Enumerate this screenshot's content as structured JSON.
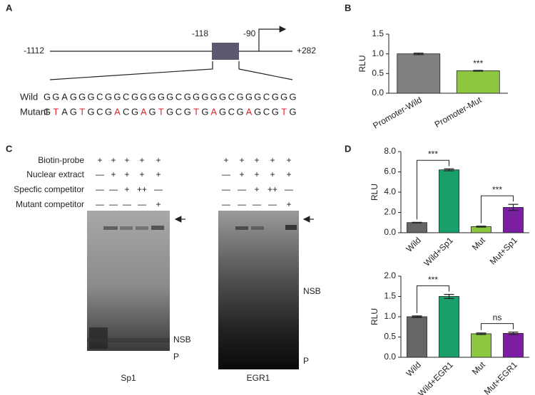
{
  "panel_labels": [
    "A",
    "B",
    "C",
    "D"
  ],
  "promoter_map": {
    "positions": [
      "-1112",
      "-118",
      "-90",
      "+282"
    ],
    "box_color": "#5c5870",
    "sequence_labels": [
      "Wild",
      "Mutant"
    ],
    "wild_sequence": [
      "G",
      "G",
      "A",
      "G",
      "G",
      "G",
      "C",
      "G",
      "G",
      "C",
      "G",
      "G",
      "G",
      "G",
      "G",
      "C",
      "G",
      "G",
      "G",
      "G",
      "G",
      "C",
      "G",
      "G",
      "G",
      "C",
      "G",
      "G",
      "G"
    ],
    "mutant_sequence": [
      "G",
      "T",
      "A",
      "G",
      "T",
      "G",
      "C",
      "G",
      "A",
      "C",
      "G",
      "A",
      "G",
      "T",
      "G",
      "C",
      "G",
      "T",
      "G",
      "A",
      "G",
      "C",
      "G",
      "A",
      "G",
      "C",
      "G",
      "T",
      "G"
    ],
    "mutation_color": "#e0262b"
  },
  "emsa": {
    "row_labels": [
      "Biotin-probe",
      "Nuclear extract",
      "Specfic competitor",
      "Mutant competitor"
    ],
    "gels": [
      {
        "name": "Sp1",
        "signs": [
          [
            "+",
            "+",
            "+",
            "+",
            "+"
          ],
          [
            "—",
            "+",
            "+",
            "+",
            "+"
          ],
          [
            "—",
            "—",
            "+",
            "++",
            "—"
          ],
          [
            "—",
            "—",
            "—",
            "—",
            "+"
          ]
        ],
        "bands": [
          "NSB",
          "P"
        ]
      },
      {
        "name": "EGR1",
        "signs": [
          [
            "+",
            "+",
            "+",
            "+",
            "+"
          ],
          [
            "—",
            "+",
            "+",
            "+",
            "+"
          ],
          [
            "—",
            "—",
            "+",
            "++",
            "—"
          ],
          [
            "—",
            "—",
            "—",
            "—",
            "+"
          ]
        ],
        "bands": [
          "NSB",
          "P"
        ]
      }
    ]
  },
  "chart_data": [
    {
      "type": "bar",
      "ylabel": "RLU",
      "categories": [
        "Promoter-Wild",
        "Promoter-Mut"
      ],
      "values": [
        1.0,
        0.57
      ],
      "errors": [
        0.02,
        0.01
      ],
      "colors": [
        "#808080",
        "#8dc63f"
      ],
      "ylim": [
        0,
        1.5
      ],
      "yticks": [
        {
          "value": 0,
          "label": "0.0"
        },
        0.5,
        {
          "value": 1,
          "label": "1.0"
        },
        1.5
      ],
      "annotations": [
        {
          "text": "***",
          "over": "Promoter-Mut"
        }
      ]
    },
    {
      "type": "bar",
      "ylabel": "RLU",
      "categories": [
        "Wild",
        "Wild+Sp1",
        "Mut",
        "Mut+Sp1"
      ],
      "values": [
        1.0,
        6.2,
        0.6,
        2.5
      ],
      "errors": [
        0.03,
        0.1,
        0.05,
        0.3
      ],
      "colors": [
        "#666666",
        "#1a9e6a",
        "#8dc63f",
        "#7b1fa2"
      ],
      "ylim": [
        0,
        8
      ],
      "yticks": [
        {
          "value": 0,
          "label": "0.0"
        },
        {
          "value": 2,
          "label": "2.0"
        },
        {
          "value": 4,
          "label": "4.0"
        },
        {
          "value": 6,
          "label": "6.0"
        },
        {
          "value": 8,
          "label": "8.0"
        }
      ],
      "annotations": [
        {
          "text": "***",
          "between": [
            "Wild",
            "Wild+Sp1"
          ]
        },
        {
          "text": "***",
          "between": [
            "Mut",
            "Mut+Sp1"
          ]
        }
      ]
    },
    {
      "type": "bar",
      "ylabel": "RLU",
      "categories": [
        "Wild",
        "Wild+EGR1",
        "Mut",
        "Mut+EGR1"
      ],
      "values": [
        1.0,
        1.5,
        0.58,
        0.59
      ],
      "errors": [
        0.02,
        0.05,
        0.02,
        0.03
      ],
      "colors": [
        "#666666",
        "#1a9e6a",
        "#8dc63f",
        "#7b1fa2"
      ],
      "ylim": [
        0,
        2
      ],
      "yticks": [
        {
          "value": 0,
          "label": "0.0"
        },
        0.5,
        {
          "value": 1,
          "label": "1.0"
        },
        1.5,
        {
          "value": 2,
          "label": "2.0"
        }
      ],
      "annotations": [
        {
          "text": "***",
          "between": [
            "Wild",
            "Wild+EGR1"
          ]
        },
        {
          "text": "ns",
          "between": [
            "Mut",
            "Mut+EGR1"
          ]
        }
      ]
    }
  ]
}
